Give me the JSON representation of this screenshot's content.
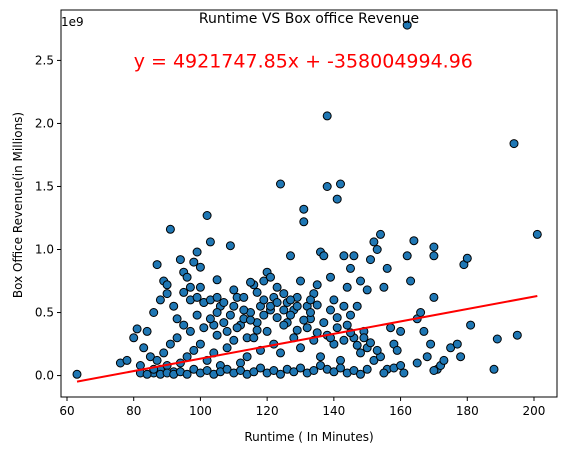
{
  "chart_data": {
    "type": "scatter",
    "title": "Runtime VS Box office Revenue",
    "xlabel": "Runtime ( In Minutes)",
    "ylabel": "Box Office Revenue(in Millions)",
    "offset_label": "1e9",
    "xlim": [
      58.2,
      206.9
    ],
    "ylim": [
      -0.17,
      2.9
    ],
    "x_ticks": [
      60,
      80,
      100,
      120,
      140,
      160,
      180,
      200
    ],
    "x_tick_labels": [
      "60",
      "80",
      "100",
      "120",
      "140",
      "160",
      "180",
      "200"
    ],
    "y_ticks": [
      0.0,
      0.5,
      1.0,
      1.5,
      2.0,
      2.5
    ],
    "y_tick_labels": [
      "0.0",
      "0.5",
      "1.0",
      "1.5",
      "2.0",
      "2.5"
    ],
    "grid": false,
    "marker_color": "#1f77b4",
    "marker_edge_color": "#000000",
    "regression": {
      "equation": "y = 4921747.85x + -358004994.96",
      "slope_billions": 0.00492174785,
      "intercept_billions": -0.35800499496,
      "x_range": [
        63,
        201
      ],
      "color": "#ff0000",
      "annotation_at": [
        80,
        2.5
      ]
    },
    "points": [
      [
        63,
        0.01
      ],
      [
        76,
        0.1
      ],
      [
        78,
        0.12
      ],
      [
        80,
        0.3
      ],
      [
        81,
        0.37
      ],
      [
        82,
        0.08
      ],
      [
        83,
        0.22
      ],
      [
        84,
        0.35
      ],
      [
        85,
        0.15
      ],
      [
        86,
        0.5
      ],
      [
        87,
        0.88
      ],
      [
        88,
        0.6
      ],
      [
        89,
        0.75
      ],
      [
        90,
        0.65
      ],
      [
        91,
        1.16
      ],
      [
        92,
        0.55
      ],
      [
        93,
        0.45
      ],
      [
        94,
        0.92
      ],
      [
        95,
        0.82
      ],
      [
        96,
        0.78
      ],
      [
        97,
        0.7
      ],
      [
        98,
        0.9
      ],
      [
        99,
        0.98
      ],
      [
        100,
        0.86
      ],
      [
        101,
        0.58
      ],
      [
        102,
        1.27
      ],
      [
        103,
        1.06
      ],
      [
        104,
        0.4
      ],
      [
        105,
        0.32
      ],
      [
        106,
        0.55
      ],
      [
        108,
        0.35
      ],
      [
        109,
        1.03
      ],
      [
        110,
        0.55
      ],
      [
        111,
        0.62
      ],
      [
        112,
        0.4
      ],
      [
        113,
        0.45
      ],
      [
        114,
        0.3
      ],
      [
        115,
        0.5
      ],
      [
        116,
        0.72
      ],
      [
        117,
        0.42
      ],
      [
        118,
        0.55
      ],
      [
        119,
        0.75
      ],
      [
        120,
        0.82
      ],
      [
        121,
        0.78
      ],
      [
        122,
        0.62
      ],
      [
        123,
        0.7
      ],
      [
        124,
        1.52
      ],
      [
        125,
        0.65
      ],
      [
        126,
        0.58
      ],
      [
        127,
        0.95
      ],
      [
        128,
        0.52
      ],
      [
        129,
        0.62
      ],
      [
        130,
        0.75
      ],
      [
        131,
        1.22
      ],
      [
        131,
        1.32
      ],
      [
        132,
        0.55
      ],
      [
        133,
        0.45
      ],
      [
        134,
        0.65
      ],
      [
        135,
        0.72
      ],
      [
        136,
        0.98
      ],
      [
        137,
        0.95
      ],
      [
        138,
        1.5
      ],
      [
        138,
        2.06
      ],
      [
        139,
        0.78
      ],
      [
        140,
        0.6
      ],
      [
        141,
        1.4
      ],
      [
        142,
        1.52
      ],
      [
        143,
        0.95
      ],
      [
        144,
        0.7
      ],
      [
        145,
        0.85
      ],
      [
        146,
        0.95
      ],
      [
        147,
        0.55
      ],
      [
        148,
        0.75
      ],
      [
        149,
        0.35
      ],
      [
        150,
        0.68
      ],
      [
        151,
        0.92
      ],
      [
        152,
        1.06
      ],
      [
        153,
        1.0
      ],
      [
        154,
        1.12
      ],
      [
        155,
        0.7
      ],
      [
        156,
        0.85
      ],
      [
        157,
        0.38
      ],
      [
        158,
        0.25
      ],
      [
        159,
        0.2
      ],
      [
        160,
        0.35
      ],
      [
        161,
        0.02
      ],
      [
        162,
        0.95
      ],
      [
        162,
        2.78
      ],
      [
        163,
        0.75
      ],
      [
        164,
        1.07
      ],
      [
        165,
        0.45
      ],
      [
        166,
        0.5
      ],
      [
        167,
        0.35
      ],
      [
        168,
        0.15
      ],
      [
        169,
        0.25
      ],
      [
        170,
        0.62
      ],
      [
        170,
        1.02
      ],
      [
        170,
        0.95
      ],
      [
        171,
        0.05
      ],
      [
        172,
        0.08
      ],
      [
        173,
        0.12
      ],
      [
        175,
        0.22
      ],
      [
        177,
        0.25
      ],
      [
        178,
        0.15
      ],
      [
        179,
        0.88
      ],
      [
        180,
        0.93
      ],
      [
        181,
        0.4
      ],
      [
        188,
        0.05
      ],
      [
        189,
        0.29
      ],
      [
        194,
        1.84
      ],
      [
        195,
        0.32
      ],
      [
        201,
        1.12
      ],
      [
        86,
        0.02
      ],
      [
        88,
        0.05
      ],
      [
        90,
        0.08
      ],
      [
        92,
        0.03
      ],
      [
        94,
        0.1
      ],
      [
        96,
        0.15
      ],
      [
        98,
        0.2
      ],
      [
        100,
        0.25
      ],
      [
        102,
        0.12
      ],
      [
        104,
        0.18
      ],
      [
        106,
        0.08
      ],
      [
        108,
        0.22
      ],
      [
        110,
        0.28
      ],
      [
        112,
        0.1
      ],
      [
        114,
        0.15
      ],
      [
        116,
        0.3
      ],
      [
        118,
        0.2
      ],
      [
        120,
        0.35
      ],
      [
        122,
        0.25
      ],
      [
        124,
        0.18
      ],
      [
        126,
        0.42
      ],
      [
        128,
        0.3
      ],
      [
        130,
        0.22
      ],
      [
        132,
        0.38
      ],
      [
        134,
        0.28
      ],
      [
        136,
        0.15
      ],
      [
        138,
        0.32
      ],
      [
        140,
        0.25
      ],
      [
        142,
        0.12
      ],
      [
        144,
        0.4
      ],
      [
        146,
        0.3
      ],
      [
        148,
        0.18
      ],
      [
        150,
        0.22
      ],
      [
        152,
        0.12
      ],
      [
        154,
        0.15
      ],
      [
        156,
        0.05
      ],
      [
        87,
        0.12
      ],
      [
        89,
        0.18
      ],
      [
        91,
        0.25
      ],
      [
        93,
        0.3
      ],
      [
        95,
        0.4
      ],
      [
        97,
        0.35
      ],
      [
        99,
        0.48
      ],
      [
        101,
        0.38
      ],
      [
        103,
        0.45
      ],
      [
        105,
        0.5
      ],
      [
        107,
        0.42
      ],
      [
        109,
        0.48
      ],
      [
        111,
        0.38
      ],
      [
        113,
        0.52
      ],
      [
        115,
        0.44
      ],
      [
        117,
        0.36
      ],
      [
        119,
        0.48
      ],
      [
        121,
        0.52
      ],
      [
        123,
        0.46
      ],
      [
        125,
        0.4
      ],
      [
        127,
        0.48
      ],
      [
        129,
        0.36
      ],
      [
        131,
        0.44
      ],
      [
        133,
        0.5
      ],
      [
        135,
        0.34
      ],
      [
        137,
        0.42
      ],
      [
        139,
        0.3
      ],
      [
        141,
        0.38
      ],
      [
        143,
        0.28
      ],
      [
        145,
        0.34
      ],
      [
        147,
        0.24
      ],
      [
        149,
        0.3
      ],
      [
        151,
        0.26
      ],
      [
        153,
        0.2
      ],
      [
        82,
        0.02
      ],
      [
        84,
        0.01
      ],
      [
        86,
        0.05
      ],
      [
        88,
        0.01
      ],
      [
        90,
        0.02
      ],
      [
        92,
        0.01
      ],
      [
        94,
        0.03
      ],
      [
        96,
        0.01
      ],
      [
        98,
        0.05
      ],
      [
        100,
        0.02
      ],
      [
        102,
        0.04
      ],
      [
        104,
        0.01
      ],
      [
        106,
        0.03
      ],
      [
        108,
        0.05
      ],
      [
        110,
        0.02
      ],
      [
        112,
        0.04
      ],
      [
        114,
        0.01
      ],
      [
        116,
        0.03
      ],
      [
        118,
        0.06
      ],
      [
        120,
        0.02
      ],
      [
        122,
        0.04
      ],
      [
        124,
        0.01
      ],
      [
        126,
        0.05
      ],
      [
        128,
        0.03
      ],
      [
        130,
        0.06
      ],
      [
        132,
        0.02
      ],
      [
        134,
        0.04
      ],
      [
        136,
        0.08
      ],
      [
        138,
        0.05
      ],
      [
        140,
        0.03
      ],
      [
        142,
        0.06
      ],
      [
        144,
        0.02
      ],
      [
        146,
        0.04
      ],
      [
        148,
        0.01
      ],
      [
        150,
        0.05
      ],
      [
        155,
        0.02
      ],
      [
        158,
        0.06
      ],
      [
        160,
        0.08
      ],
      [
        165,
        0.1
      ],
      [
        170,
        0.04
      ],
      [
        97,
        0.6
      ],
      [
        99,
        0.62
      ],
      [
        101,
        0.58
      ],
      [
        103,
        0.6
      ],
      [
        105,
        0.62
      ],
      [
        107,
        0.58
      ],
      [
        113,
        0.62
      ],
      [
        117,
        0.66
      ],
      [
        119,
        0.6
      ],
      [
        121,
        0.55
      ],
      [
        123,
        0.58
      ],
      [
        125,
        0.52
      ],
      [
        127,
        0.6
      ],
      [
        129,
        0.55
      ],
      [
        133,
        0.6
      ],
      [
        135,
        0.56
      ],
      [
        139,
        0.52
      ],
      [
        141,
        0.46
      ],
      [
        143,
        0.55
      ],
      [
        145,
        0.48
      ],
      [
        90,
        0.72
      ],
      [
        95,
        0.66
      ],
      [
        100,
        0.7
      ],
      [
        105,
        0.76
      ],
      [
        110,
        0.68
      ],
      [
        115,
        0.74
      ]
    ]
  }
}
